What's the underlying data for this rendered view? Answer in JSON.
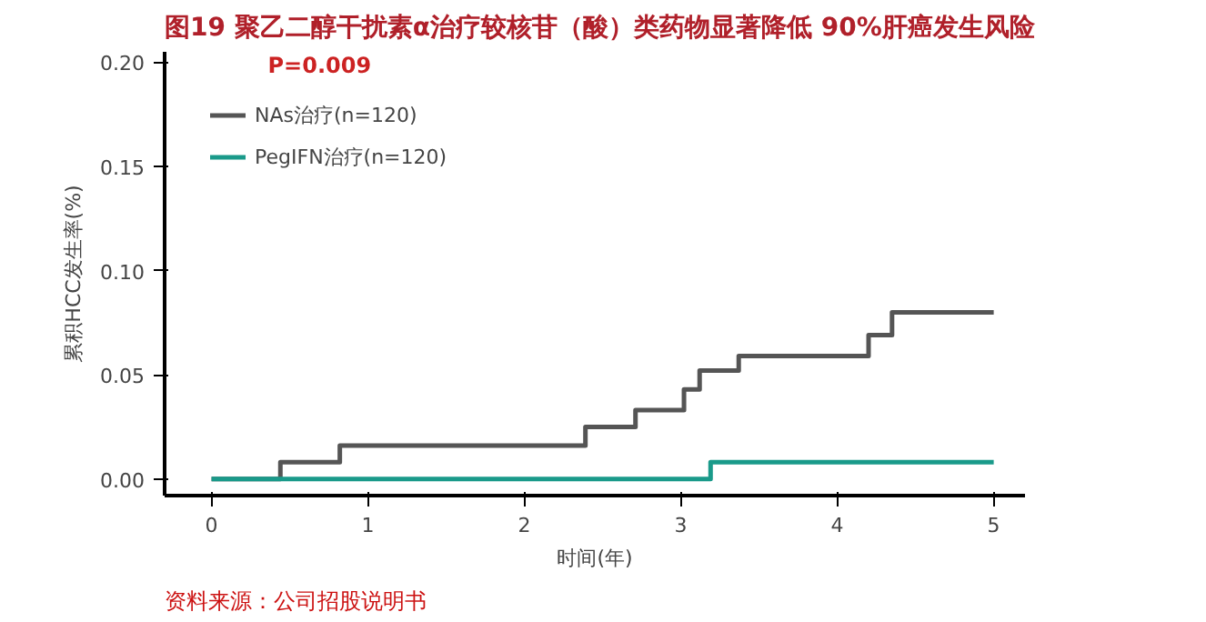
{
  "chart_data": {
    "type": "step",
    "title": "图19 聚乙二醇干扰素α治疗较核苷（酸）类药物显著降低 90%肝癌发生风险",
    "xlabel": "时间(年)",
    "ylabel": "累积HCC发生率(%)",
    "series": [
      {
        "name": "NAs治疗(n=120)",
        "color": "#555555",
        "x": [
          0,
          0.44,
          0.82,
          2.39,
          2.71,
          3.02,
          3.12,
          3.37,
          4.2,
          4.35,
          5
        ],
        "values": [
          0,
          0.008,
          0.016,
          0.025,
          0.033,
          0.043,
          0.052,
          0.059,
          0.069,
          0.08,
          0.08
        ]
      },
      {
        "name": "PegIFN治疗(n=120)",
        "color": "#1a9a8a",
        "x": [
          0,
          3.19,
          5
        ],
        "values": [
          0,
          0.008,
          0.008
        ]
      }
    ],
    "xlim": [
      -0.3,
      5.2
    ],
    "ylim": [
      -0.008,
      0.205
    ],
    "xticks": [
      0,
      1,
      2,
      3,
      4,
      5
    ],
    "yticks": [
      {
        "value": 0,
        "label": "0.00"
      },
      {
        "value": 0.05,
        "label": "0.05"
      },
      {
        "value": 0.1,
        "label": "0.10"
      },
      {
        "value": 0.15,
        "label": "0.15"
      },
      {
        "value": 0.2,
        "label": "0.20"
      }
    ],
    "annotations": [
      "P=0.009",
      "资料来源：公司招股说明书"
    ],
    "legend": "top left",
    "grid": false
  }
}
